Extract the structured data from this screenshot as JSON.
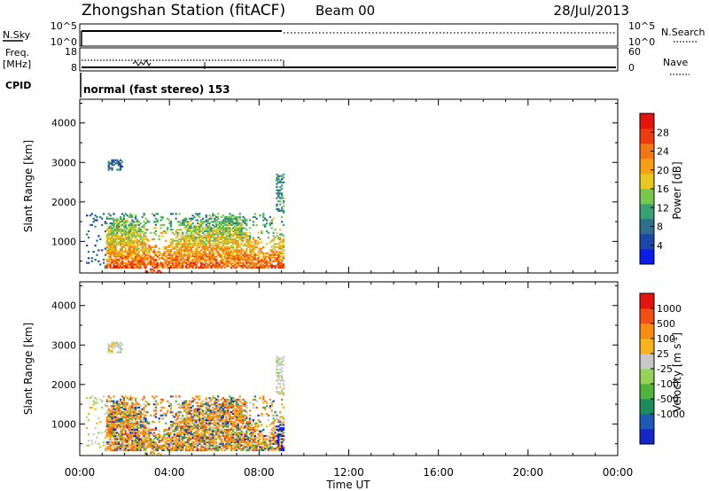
{
  "header": {
    "station": "Zhongshan Station (fitACF)",
    "beam": "Beam 00",
    "date": "28/Jul/2013"
  },
  "panels": {
    "sky": {
      "left_label": "N.Sky",
      "left_ticks": [
        "10^5",
        "10^0"
      ],
      "right_label": "N.Search",
      "right_ticks": [
        "10^5",
        "10^0"
      ]
    },
    "freq": {
      "left_label_1": "Freq.",
      "left_label_2": "[MHz]",
      "left_ticks": [
        "18",
        "8"
      ],
      "right_label": "Nave",
      "right_ticks": [
        "60",
        "0"
      ]
    },
    "cpid": {
      "label": "CPID",
      "text": "normal (fast stereo) 153"
    }
  },
  "colors": {
    "power": [
      "#0a1ee6",
      "#1e46a8",
      "#2e6e8c",
      "#3aa073",
      "#78c850",
      "#e6c81e",
      "#f5a014",
      "#f07814",
      "#eb3c0f",
      "#e6140f"
    ],
    "velocity": [
      "#e6140f",
      "#f05014",
      "#f58c14",
      "#f5b41e",
      "#c8c8c8",
      "#96d25a",
      "#50b43c",
      "#1e8c5a",
      "#1e5ab4",
      "#1428c8"
    ]
  },
  "chart_data": [
    {
      "type": "heatmap",
      "name": "power",
      "ylabel": "Slant Range [km]",
      "yticks": [
        "1000",
        "2000",
        "3000",
        "4000"
      ],
      "ylim": [
        200,
        4600
      ],
      "xlim": [
        0,
        24
      ],
      "colorbar": {
        "label": "Power [dB]",
        "ticks": [
          "4",
          "8",
          "12",
          "16",
          "20",
          "24",
          "28"
        ],
        "range": [
          0,
          32
        ]
      },
      "data_end_hour": 9.1
    },
    {
      "type": "heatmap",
      "name": "velocity",
      "ylabel": "Slant Range [km]",
      "yticks": [
        "1000",
        "2000",
        "3000",
        "4000"
      ],
      "ylim": [
        200,
        4600
      ],
      "xlim": [
        0,
        24
      ],
      "xticks": [
        "00:00",
        "04:00",
        "08:00",
        "12:00",
        "16:00",
        "20:00",
        "00:00"
      ],
      "xlabel": "Time UT",
      "colorbar": {
        "label": "Velocity [m s",
        "label_sup": "-1",
        "label_end": "]",
        "ticks": [
          "1000",
          "500",
          "100",
          "25",
          "-25",
          "-100",
          "-500",
          "-1000"
        ]
      },
      "data_end_hour": 9.1
    }
  ]
}
